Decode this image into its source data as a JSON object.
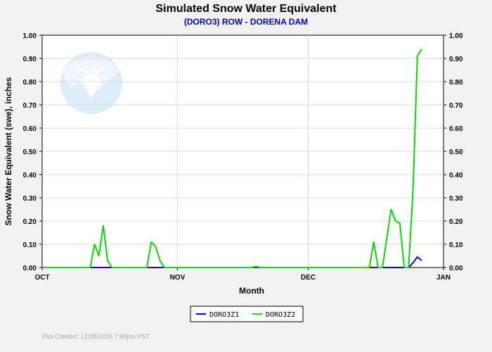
{
  "chart_data": {
    "type": "line",
    "title": "Simulated Snow Water Equivalent",
    "subtitle": "(DORO3) ROW - DORENA DAM",
    "xlabel": "Month",
    "ylabel": "Snow Water Equivalent (swe),  inches",
    "ylim": [
      0,
      1.0
    ],
    "yticks": [
      "0.00",
      "0.10",
      "0.20",
      "0.30",
      "0.40",
      "0.50",
      "0.60",
      "0.70",
      "0.80",
      "0.90",
      "1.00"
    ],
    "xlim": [
      "2025-10-01",
      "2026-01-01"
    ],
    "xticks": [
      {
        "label": "OCT",
        "date": "2025-10-01"
      },
      {
        "label": "NOV",
        "date": "2025-11-01"
      },
      {
        "label": "DEC",
        "date": "2025-12-01"
      },
      {
        "label": "JAN",
        "date": "2026-01-01"
      }
    ],
    "grid": true,
    "legend": "bottom-center",
    "series": [
      {
        "name": "DORO3Z1",
        "color": "#0000cc",
        "points": [
          [
            "2025-10-01",
            0.0
          ],
          [
            "2025-12-24",
            0.0
          ],
          [
            "2025-12-25",
            0.02
          ],
          [
            "2025-12-26",
            0.045
          ],
          [
            "2025-12-27",
            0.03
          ]
        ]
      },
      {
        "name": "DORO3Z2",
        "color": "#00dd00",
        "points": [
          [
            "2025-10-01",
            0.0
          ],
          [
            "2025-10-12",
            0.0
          ],
          [
            "2025-10-13",
            0.1
          ],
          [
            "2025-10-14",
            0.05
          ],
          [
            "2025-10-15",
            0.18
          ],
          [
            "2025-10-16",
            0.03
          ],
          [
            "2025-10-17",
            0.0
          ],
          [
            "2025-10-25",
            0.0
          ],
          [
            "2025-10-26",
            0.11
          ],
          [
            "2025-10-27",
            0.09
          ],
          [
            "2025-10-28",
            0.03
          ],
          [
            "2025-10-29",
            0.0
          ],
          [
            "2025-11-18",
            0.0
          ],
          [
            "2025-11-19",
            0.005
          ],
          [
            "2025-11-20",
            0.0
          ],
          [
            "2025-12-15",
            0.0
          ],
          [
            "2025-12-16",
            0.11
          ],
          [
            "2025-12-17",
            0.0
          ],
          [
            "2025-12-18",
            0.0
          ],
          [
            "2025-12-20",
            0.25
          ],
          [
            "2025-12-21",
            0.2
          ],
          [
            "2025-12-22",
            0.19
          ],
          [
            "2025-12-23",
            0.0
          ],
          [
            "2025-12-24",
            0.0
          ],
          [
            "2025-12-25",
            0.33
          ],
          [
            "2025-12-26",
            0.91
          ],
          [
            "2025-12-27",
            0.94
          ]
        ]
      }
    ],
    "footer": "Plot Created:  12/28/2025 7:48pm PST",
    "watermark": "NOAA"
  }
}
